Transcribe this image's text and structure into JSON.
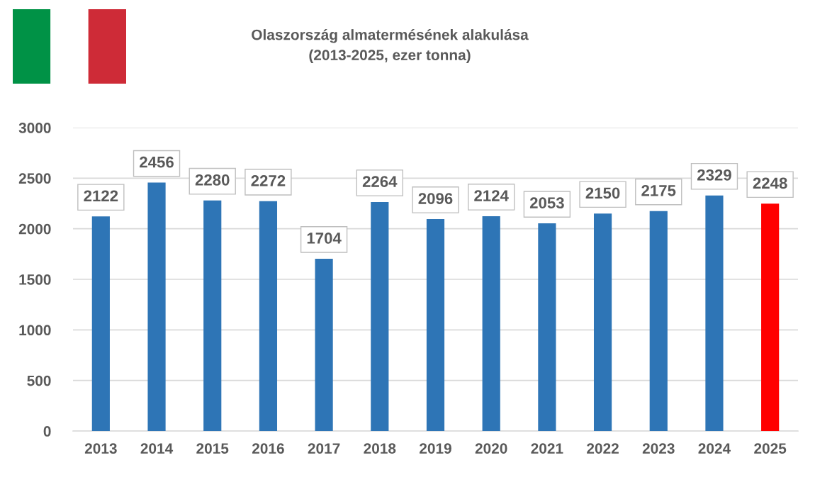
{
  "chart_data": {
    "type": "bar",
    "title": "Olaszország almatermésének alakulása\n(2013-2025, ezer tonna)",
    "categories": [
      "2013",
      "2014",
      "2015",
      "2016",
      "2017",
      "2018",
      "2019",
      "2020",
      "2021",
      "2022",
      "2023",
      "2024",
      "2025"
    ],
    "values": [
      2122,
      2456,
      2280,
      2272,
      1704,
      2264,
      2096,
      2124,
      2053,
      2150,
      2175,
      2329,
      2248
    ],
    "colors": [
      "#2e75b6",
      "#2e75b6",
      "#2e75b6",
      "#2e75b6",
      "#2e75b6",
      "#2e75b6",
      "#2e75b6",
      "#2e75b6",
      "#2e75b6",
      "#2e75b6",
      "#2e75b6",
      "#2e75b6",
      "#ff0000"
    ],
    "ylim": [
      0,
      3000
    ],
    "yticks": [
      0,
      500,
      1000,
      1500,
      2000,
      2500,
      3000
    ],
    "grid": "y",
    "data_labels": true
  }
}
